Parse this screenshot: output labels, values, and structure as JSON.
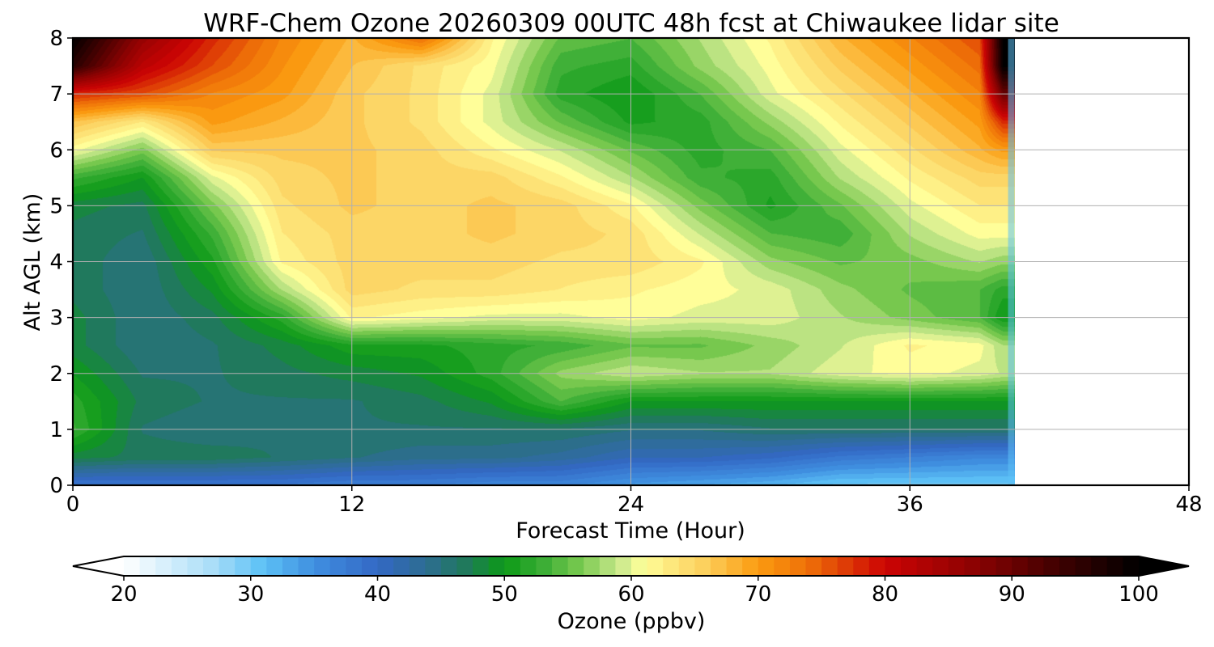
{
  "chart_data": {
    "type": "heatmap",
    "title": "WRF-Chem Ozone  20260309 00UTC 48h fcst at Chiwaukee lidar site",
    "xlabel": "Forecast Time (Hour)",
    "ylabel": "Alt AGL (km)",
    "xlim": [
      0,
      48
    ],
    "ylim": [
      0,
      8
    ],
    "xticks": [
      "0",
      "12",
      "24",
      "36",
      "48"
    ],
    "yticks": [
      "0",
      "1",
      "2",
      "3",
      "4",
      "5",
      "6",
      "7",
      "8"
    ],
    "grid": true,
    "data_end_hour": 40.5,
    "field": {
      "description": "Approximate ozone mixing ratio (ppbv) read from colour contours",
      "x_hours": [
        0,
        3,
        6,
        9,
        12,
        15,
        18,
        21,
        24,
        27,
        30,
        33,
        36,
        39,
        40
      ],
      "y_km": [
        0,
        0.5,
        1,
        1.5,
        2,
        2.5,
        3,
        3.5,
        4,
        4.5,
        5,
        5.5,
        6,
        6.5,
        7,
        7.5,
        8
      ],
      "values": [
        [
          38,
          38,
          38,
          38,
          37,
          37,
          36,
          36,
          34,
          33,
          32,
          30,
          30,
          30,
          30
        ],
        [
          48,
          47,
          47,
          46,
          45,
          44,
          44,
          43,
          41,
          41,
          40,
          38,
          37,
          36,
          36
        ],
        [
          53,
          46,
          45,
          46,
          46,
          46,
          46,
          46,
          45,
          45,
          46,
          46,
          46,
          46,
          46
        ],
        [
          52,
          47,
          46,
          46,
          46,
          47,
          49,
          54,
          50,
          50,
          50,
          50,
          50,
          50,
          50
        ],
        [
          50,
          46,
          46,
          47,
          48,
          49,
          52,
          57,
          59,
          58,
          58,
          60,
          61,
          60,
          59
        ],
        [
          48,
          45,
          46,
          48,
          51,
          51,
          52,
          53,
          55,
          55,
          57,
          59,
          62,
          61,
          58
        ],
        [
          48,
          45,
          47,
          52,
          62,
          61,
          60,
          60,
          61,
          60,
          60,
          58,
          56,
          54,
          50
        ],
        [
          47,
          45,
          49,
          58,
          65,
          64,
          64,
          63,
          62,
          61,
          60,
          57,
          55,
          54,
          52
        ],
        [
          47,
          45,
          51,
          62,
          65,
          65,
          65,
          64,
          64,
          62,
          57,
          55,
          56,
          58,
          57
        ],
        [
          47,
          46,
          53,
          63,
          65,
          65,
          66,
          65,
          64,
          59,
          54,
          53,
          58,
          61,
          61
        ],
        [
          48,
          47,
          56,
          64,
          66,
          65,
          66,
          65,
          62,
          56,
          51,
          55,
          60,
          63,
          63
        ],
        [
          53,
          50,
          60,
          65,
          66,
          65,
          65,
          62,
          58,
          53,
          52,
          58,
          62,
          65,
          65
        ],
        [
          61,
          56,
          66,
          66,
          66,
          65,
          62,
          59,
          55,
          52,
          54,
          60,
          64,
          68,
          70
        ],
        [
          67,
          63,
          70,
          68,
          66,
          64,
          60,
          55,
          51,
          52,
          57,
          62,
          66,
          70,
          78
        ],
        [
          78,
          76,
          72,
          70,
          66,
          64,
          60,
          52,
          50,
          54,
          60,
          64,
          68,
          72,
          90
        ],
        [
          96,
          82,
          76,
          71,
          67,
          64,
          61,
          53,
          52,
          57,
          61,
          66,
          70,
          74,
          100
        ],
        [
          100,
          86,
          78,
          72,
          68,
          74,
          62,
          55,
          54,
          58,
          62,
          68,
          72,
          76,
          100
        ]
      ]
    },
    "colorbar": {
      "label": "Ozone  (ppbv)",
      "min": 20,
      "max": 100,
      "extend": "both",
      "ticks": [
        "20",
        "30",
        "40",
        "50",
        "60",
        "70",
        "80",
        "90",
        "100"
      ],
      "colors": [
        {
          "v": 20,
          "c": "#ffffff"
        },
        {
          "v": 27,
          "c": "#a9ddf8"
        },
        {
          "v": 31,
          "c": "#5cc1f6"
        },
        {
          "v": 35,
          "c": "#3f8fe0"
        },
        {
          "v": 40,
          "c": "#3368c4"
        },
        {
          "v": 44,
          "c": "#2d6d8e"
        },
        {
          "v": 47,
          "c": "#1f7a5a"
        },
        {
          "v": 50,
          "c": "#0c9a17"
        },
        {
          "v": 53,
          "c": "#3aad35"
        },
        {
          "v": 56,
          "c": "#79c94f"
        },
        {
          "v": 59,
          "c": "#c8e88c"
        },
        {
          "v": 61,
          "c": "#ffff9a"
        },
        {
          "v": 63,
          "c": "#fde97f"
        },
        {
          "v": 66,
          "c": "#fccd59"
        },
        {
          "v": 70,
          "c": "#fb9b10"
        },
        {
          "v": 74,
          "c": "#ee6f08"
        },
        {
          "v": 80,
          "c": "#cc0404"
        },
        {
          "v": 87,
          "c": "#8c0202"
        },
        {
          "v": 94,
          "c": "#3c0101"
        },
        {
          "v": 100,
          "c": "#000000"
        }
      ]
    }
  }
}
